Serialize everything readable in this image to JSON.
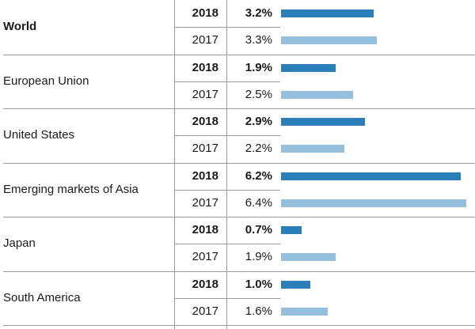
{
  "chart_data": {
    "type": "bar",
    "orientation": "horizontal",
    "colors": {
      "current": "#2a7fb8",
      "previous": "#94bfdd",
      "grid": "#9a9a9a"
    },
    "rows": [
      {
        "region": "World",
        "emphasis": true,
        "values": [
          {
            "year": "2018",
            "value": 3.2,
            "label": "3.2%"
          },
          {
            "year": "2017",
            "value": 3.3,
            "label": "3.3%"
          }
        ]
      },
      {
        "region": "European Union",
        "emphasis": false,
        "values": [
          {
            "year": "2018",
            "value": 1.9,
            "label": "1.9%"
          },
          {
            "year": "2017",
            "value": 2.5,
            "label": "2.5%"
          }
        ]
      },
      {
        "region": "United States",
        "emphasis": false,
        "values": [
          {
            "year": "2018",
            "value": 2.9,
            "label": "2.9%"
          },
          {
            "year": "2017",
            "value": 2.2,
            "label": "2.2%"
          }
        ]
      },
      {
        "region": "Emerging markets of Asia",
        "emphasis": false,
        "values": [
          {
            "year": "2018",
            "value": 6.2,
            "label": "6.2%"
          },
          {
            "year": "2017",
            "value": 6.4,
            "label": "6.4%"
          }
        ]
      },
      {
        "region": "Japan",
        "emphasis": false,
        "values": [
          {
            "year": "2018",
            "value": 0.7,
            "label": "0.7%"
          },
          {
            "year": "2017",
            "value": 1.9,
            "label": "1.9%"
          }
        ]
      },
      {
        "region": "South America",
        "emphasis": false,
        "values": [
          {
            "year": "2018",
            "value": 1.0,
            "label": "1.0%"
          },
          {
            "year": "2017",
            "value": 1.6,
            "label": "1.6%"
          }
        ]
      }
    ],
    "xlim": [
      0,
      6.4
    ]
  }
}
